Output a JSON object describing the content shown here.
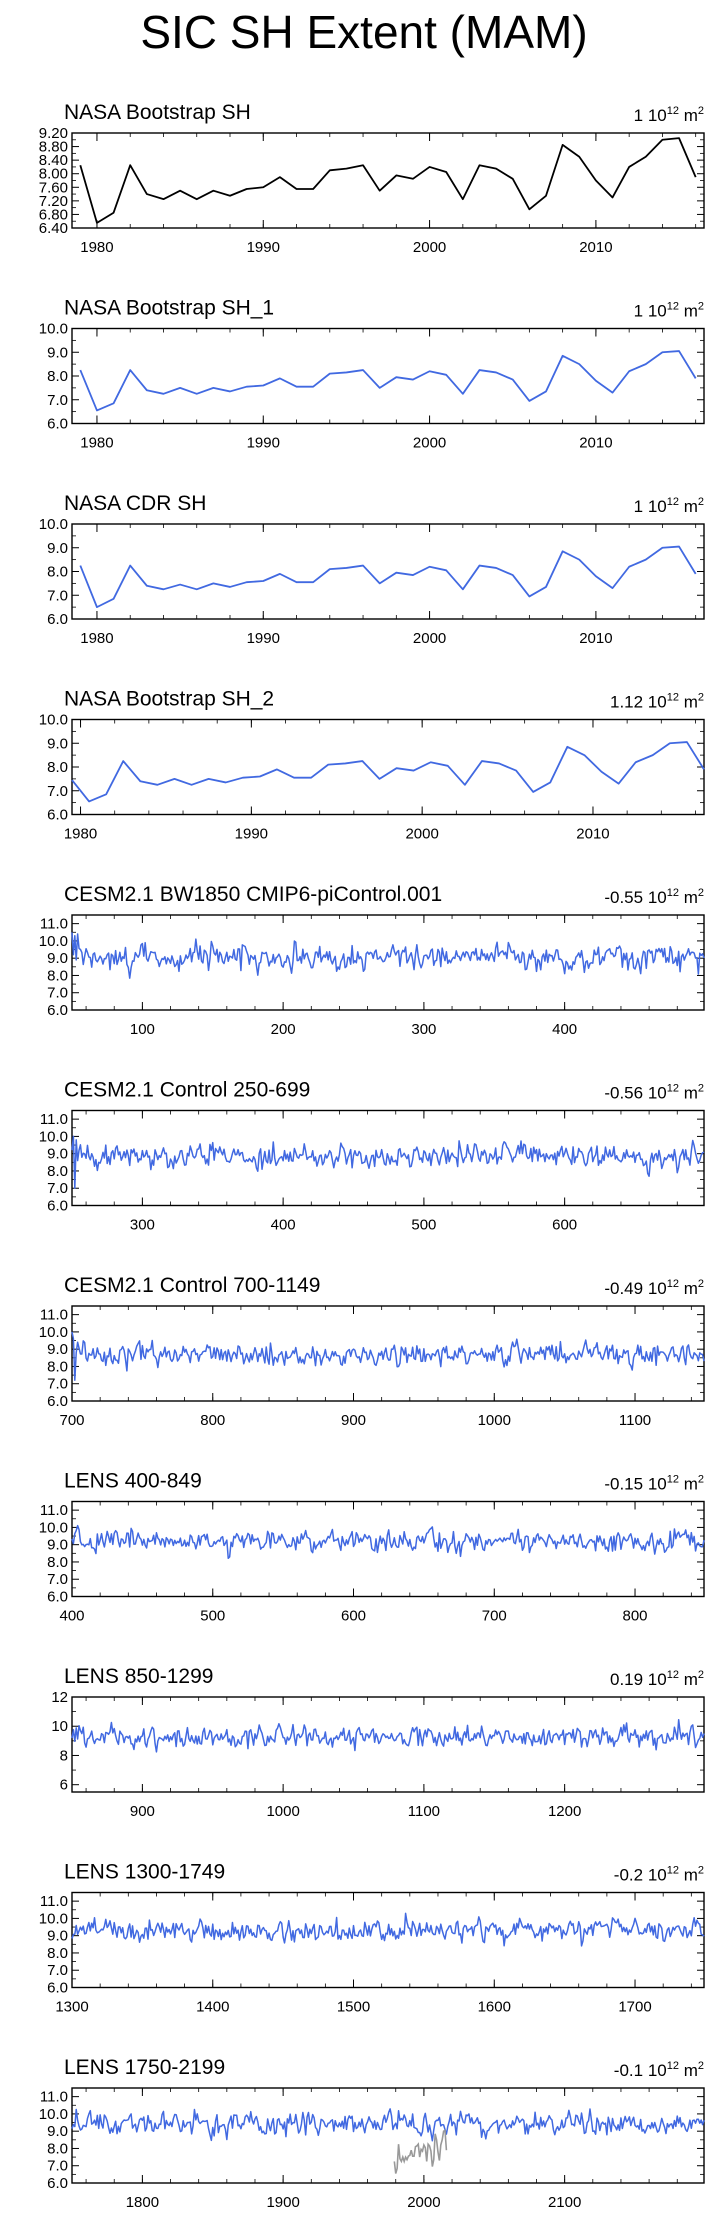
{
  "title": "SIC SH Extent (MAM)",
  "chart_data": [
    {
      "type": "line",
      "title": "NASA Bootstrap SH",
      "trend_value": "1",
      "trend_unit": "10",
      "trend_exp": "12",
      "trend_suffix": "m",
      "trend_suffix_exp": "2",
      "xlim": [
        1978.5,
        2016.5
      ],
      "ylim": [
        6.4,
        9.2
      ],
      "yticks": [
        6.4,
        6.8,
        7.2,
        7.6,
        8.0,
        8.4,
        8.8,
        9.2
      ],
      "yticklabels": [
        "6.40",
        "6.80",
        "7.20",
        "7.60",
        "8.00",
        "8.40",
        "8.80",
        "9.20"
      ],
      "xticks": [
        1980,
        1990,
        2000,
        2010
      ],
      "xticklabels": [
        "1980",
        "1990",
        "2000",
        "2010"
      ],
      "color": "#000000",
      "x_start": 1979,
      "values": [
        8.25,
        6.55,
        6.85,
        8.25,
        7.4,
        7.25,
        7.5,
        7.25,
        7.5,
        7.35,
        7.55,
        7.6,
        7.9,
        7.55,
        7.55,
        8.1,
        8.15,
        8.25,
        7.5,
        7.95,
        7.85,
        8.2,
        8.05,
        7.25,
        8.25,
        8.15,
        7.85,
        6.95,
        7.35,
        8.85,
        8.5,
        7.8,
        7.3,
        8.2,
        8.5,
        9.0,
        9.05,
        7.9
      ]
    },
    {
      "type": "line",
      "title": "NASA Bootstrap SH_1",
      "trend_value": "1",
      "trend_unit": "10",
      "trend_exp": "12",
      "trend_suffix": "m",
      "trend_suffix_exp": "2",
      "xlim": [
        1978.5,
        2016.5
      ],
      "ylim": [
        6.0,
        10.0
      ],
      "yticks": [
        6,
        7,
        8,
        9,
        10
      ],
      "yticklabels": [
        "6.0",
        "7.0",
        "8.0",
        "9.0",
        "10.0"
      ],
      "xticks": [
        1980,
        1990,
        2000,
        2010
      ],
      "xticklabels": [
        "1980",
        "1990",
        "2000",
        "2010"
      ],
      "color": "#4169e1",
      "x_start": 1979,
      "values": [
        8.25,
        6.55,
        6.85,
        8.25,
        7.4,
        7.25,
        7.5,
        7.25,
        7.5,
        7.35,
        7.55,
        7.6,
        7.9,
        7.55,
        7.55,
        8.1,
        8.15,
        8.25,
        7.5,
        7.95,
        7.85,
        8.2,
        8.05,
        7.25,
        8.25,
        8.15,
        7.85,
        6.95,
        7.35,
        8.85,
        8.5,
        7.8,
        7.3,
        8.2,
        8.5,
        9.0,
        9.05,
        7.9
      ]
    },
    {
      "type": "line",
      "title": "NASA CDR SH",
      "trend_value": "1",
      "trend_unit": "10",
      "trend_exp": "12",
      "trend_suffix": "m",
      "trend_suffix_exp": "2",
      "xlim": [
        1978.5,
        2016.5
      ],
      "ylim": [
        6.0,
        10.0
      ],
      "yticks": [
        6,
        7,
        8,
        9,
        10
      ],
      "yticklabels": [
        "6.0",
        "7.0",
        "8.0",
        "9.0",
        "10.0"
      ],
      "xticks": [
        1980,
        1990,
        2000,
        2010
      ],
      "xticklabels": [
        "1980",
        "1990",
        "2000",
        "2010"
      ],
      "color": "#4169e1",
      "x_start": 1979,
      "values": [
        8.25,
        6.5,
        6.85,
        8.25,
        7.4,
        7.25,
        7.45,
        7.25,
        7.5,
        7.35,
        7.55,
        7.6,
        7.9,
        7.55,
        7.55,
        8.1,
        8.15,
        8.25,
        7.5,
        7.95,
        7.85,
        8.2,
        8.05,
        7.25,
        8.25,
        8.15,
        7.85,
        6.95,
        7.35,
        8.85,
        8.5,
        7.8,
        7.3,
        8.2,
        8.5,
        9.0,
        9.05,
        7.9
      ]
    },
    {
      "type": "line",
      "title": "NASA Bootstrap SH_2",
      "trend_value": "1.12",
      "trend_unit": "10",
      "trend_exp": "12",
      "trend_suffix": "m",
      "trend_suffix_exp": "2",
      "xlim": [
        1979.5,
        2016.5
      ],
      "ylim": [
        6.0,
        10.0
      ],
      "yticks": [
        6,
        7,
        8,
        9,
        10
      ],
      "yticklabels": [
        "6.0",
        "7.0",
        "8.0",
        "9.0",
        "10.0"
      ],
      "xticks": [
        1980,
        1990,
        2000,
        2010
      ],
      "xticklabels": [
        "1980",
        "1990",
        "2000",
        "2010"
      ],
      "color": "#4169e1",
      "x_start": 1979.5,
      "values": [
        7.45,
        6.55,
        6.85,
        8.25,
        7.4,
        7.25,
        7.5,
        7.25,
        7.5,
        7.35,
        7.55,
        7.6,
        7.9,
        7.55,
        7.55,
        8.1,
        8.15,
        8.25,
        7.5,
        7.95,
        7.85,
        8.2,
        8.05,
        7.25,
        8.25,
        8.15,
        7.85,
        6.95,
        7.35,
        8.85,
        8.5,
        7.8,
        7.3,
        8.2,
        8.5,
        9.0,
        9.05,
        7.9
      ]
    },
    {
      "type": "line",
      "title": "CESM2.1 BW1850 CMIP6-piControl.001",
      "trend_value": "-0.55",
      "trend_unit": "10",
      "trend_exp": "12",
      "trend_suffix": "m",
      "trend_suffix_exp": "2",
      "xlim": [
        50,
        499
      ],
      "ylim": [
        6.0,
        11.5
      ],
      "yticks": [
        6,
        7,
        8,
        9,
        10,
        11
      ],
      "yticklabels": [
        "6.0",
        "7.0",
        "8.0",
        "9.0",
        "10.0",
        "11.0"
      ],
      "xticks": [
        100,
        200,
        300,
        400
      ],
      "xticklabels": [
        "100",
        "200",
        "300",
        "400"
      ],
      "color": "#4169e1",
      "x_start": 50,
      "count": 450,
      "seed": 11,
      "mean": 9.0,
      "sd": 0.55,
      "warm_start": [
        10.5,
        9.2,
        10.3,
        8.9,
        10.4
      ]
    },
    {
      "type": "line",
      "title": "CESM2.1 Control 250-699",
      "trend_value": "-0.56",
      "trend_unit": "10",
      "trend_exp": "12",
      "trend_suffix": "m",
      "trend_suffix_exp": "2",
      "xlim": [
        250,
        699
      ],
      "ylim": [
        6.0,
        11.5
      ],
      "yticks": [
        6,
        7,
        8,
        9,
        10,
        11
      ],
      "yticklabels": [
        "6.0",
        "7.0",
        "8.0",
        "9.0",
        "10.0",
        "11.0"
      ],
      "xticks": [
        300,
        400,
        500,
        600
      ],
      "xticklabels": [
        "300",
        "400",
        "500",
        "600"
      ],
      "color": "#4169e1",
      "x_start": 250,
      "count": 450,
      "seed": 23,
      "mean": 8.9,
      "sd": 0.55,
      "warm_start": [
        9.2,
        10.0,
        7.0,
        9.8,
        8.6
      ]
    },
    {
      "type": "line",
      "title": "CESM2.1 Control 700-1149",
      "trend_value": "-0.49",
      "trend_unit": "10",
      "trend_exp": "12",
      "trend_suffix": "m",
      "trend_suffix_exp": "2",
      "xlim": [
        700,
        1149
      ],
      "ylim": [
        6.0,
        11.5
      ],
      "yticks": [
        6,
        7,
        8,
        9,
        10,
        11
      ],
      "yticklabels": [
        "6.0",
        "7.0",
        "8.0",
        "9.0",
        "10.0",
        "11.0"
      ],
      "xticks": [
        700,
        800,
        900,
        1000,
        1100
      ],
      "xticklabels": [
        "700",
        "800",
        "900",
        "1000",
        "1100"
      ],
      "color": "#4169e1",
      "x_start": 700,
      "count": 450,
      "seed": 37,
      "mean": 8.7,
      "sd": 0.5,
      "warm_start": [
        10.0,
        9.6,
        7.2,
        8.8,
        9.4
      ]
    },
    {
      "type": "line",
      "title": "LENS 400-849",
      "trend_value": "-0.15",
      "trend_unit": "10",
      "trend_exp": "12",
      "trend_suffix": "m",
      "trend_suffix_exp": "2",
      "xlim": [
        400,
        849
      ],
      "ylim": [
        6.0,
        11.5
      ],
      "yticks": [
        6,
        7,
        8,
        9,
        10,
        11
      ],
      "yticklabels": [
        "6.0",
        "7.0",
        "8.0",
        "9.0",
        "10.0",
        "11.0"
      ],
      "xticks": [
        400,
        500,
        600,
        700,
        800
      ],
      "xticklabels": [
        "400",
        "500",
        "600",
        "700",
        "800"
      ],
      "color": "#4169e1",
      "x_start": 400,
      "count": 450,
      "seed": 41,
      "mean": 9.2,
      "sd": 0.5
    },
    {
      "type": "line",
      "title": "LENS 850-1299",
      "trend_value": "0.19",
      "trend_unit": "10",
      "trend_exp": "12",
      "trend_suffix": "m",
      "trend_suffix_exp": "2",
      "xlim": [
        850,
        1299
      ],
      "ylim": [
        5.5,
        12.0
      ],
      "yticks": [
        6,
        8,
        10,
        12
      ],
      "yticklabels": [
        "6",
        "8",
        "10",
        "12"
      ],
      "xticks": [
        900,
        1000,
        1100,
        1200
      ],
      "xticklabels": [
        "900",
        "1000",
        "1100",
        "1200"
      ],
      "color": "#4169e1",
      "x_start": 850,
      "count": 450,
      "seed": 53,
      "mean": 9.3,
      "sd": 0.55
    },
    {
      "type": "line",
      "title": "LENS 1300-1749",
      "trend_value": "-0.2",
      "trend_unit": "10",
      "trend_exp": "12",
      "trend_suffix": "m",
      "trend_suffix_exp": "2",
      "xlim": [
        1300,
        1749
      ],
      "ylim": [
        6.0,
        11.5
      ],
      "yticks": [
        6,
        7,
        8,
        9,
        10,
        11
      ],
      "yticklabels": [
        "6.0",
        "7.0",
        "8.0",
        "9.0",
        "10.0",
        "11.0"
      ],
      "xticks": [
        1300,
        1400,
        1500,
        1600,
        1700
      ],
      "xticklabels": [
        "1300",
        "1400",
        "1500",
        "1600",
        "1700"
      ],
      "color": "#4169e1",
      "x_start": 1300,
      "count": 450,
      "seed": 67,
      "mean": 9.3,
      "sd": 0.5
    },
    {
      "type": "line",
      "title": "LENS 1750-2199",
      "trend_value": "-0.1",
      "trend_unit": "10",
      "trend_exp": "12",
      "trend_suffix": "m",
      "trend_suffix_exp": "2",
      "xlim": [
        1750,
        2199
      ],
      "ylim": [
        6.0,
        11.5
      ],
      "yticks": [
        6,
        7,
        8,
        9,
        10,
        11
      ],
      "yticklabels": [
        "6.0",
        "7.0",
        "8.0",
        "9.0",
        "10.0",
        "11.0"
      ],
      "xticks": [
        1800,
        1900,
        2000,
        2100
      ],
      "xticklabels": [
        "1800",
        "1900",
        "2000",
        "2100"
      ],
      "color": "#4169e1",
      "x_start": 1750,
      "count": 450,
      "seed": 79,
      "mean": 9.4,
      "sd": 0.5,
      "overlay": {
        "color": "#999999",
        "x_start": 1979,
        "values": [
          7.25,
          6.55,
          6.85,
          8.25,
          7.4,
          7.25,
          7.5,
          7.25,
          7.5,
          7.35,
          7.55,
          7.6,
          7.9,
          7.55,
          7.55,
          8.1,
          8.15,
          8.25,
          7.5,
          7.95,
          7.85,
          8.2,
          8.05,
          7.25,
          8.25,
          8.15,
          7.85,
          6.95,
          7.35,
          8.85,
          8.5,
          7.8,
          7.3,
          8.2,
          8.5,
          9.0,
          9.05,
          7.9
        ]
      }
    }
  ]
}
